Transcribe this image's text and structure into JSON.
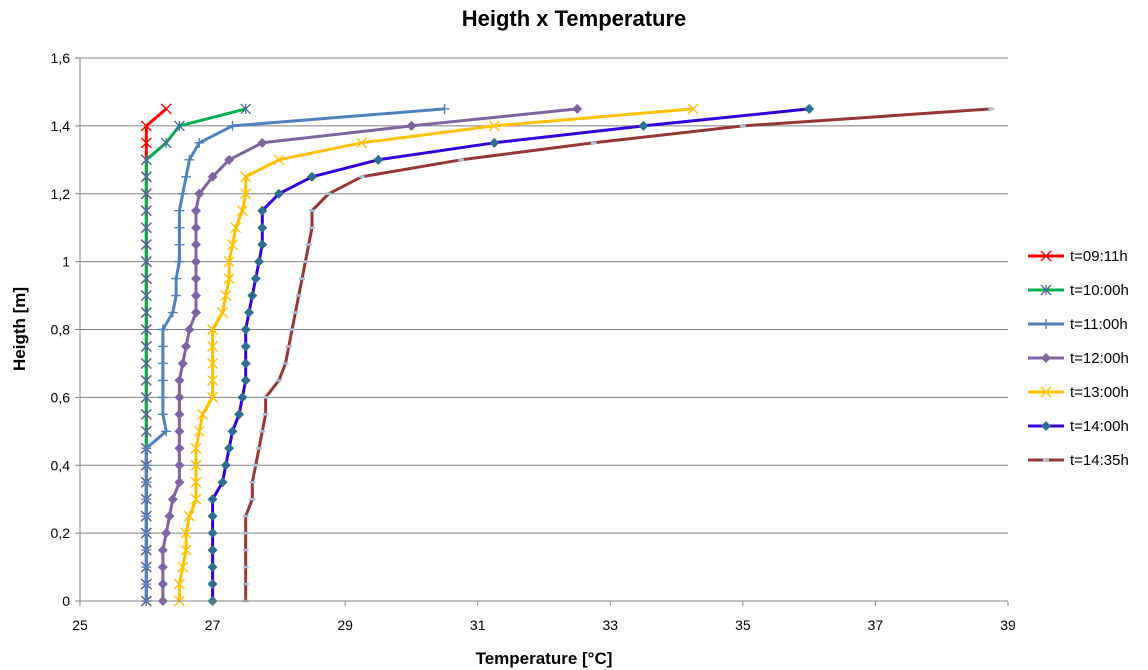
{
  "chart_data": {
    "type": "line",
    "title": "Heigth x Temperature",
    "xlabel": "Temperature [°C]",
    "ylabel": "Heigth [m]",
    "xlim": [
      25,
      39
    ],
    "ylim": [
      0,
      1.6
    ],
    "xticks": [
      25,
      27,
      29,
      31,
      33,
      35,
      37,
      39
    ],
    "xtick_labels": [
      "25",
      "27",
      "29",
      "31",
      "33",
      "35",
      "37",
      "39"
    ],
    "yticks": [
      0,
      0.2,
      0.4,
      0.6,
      0.8,
      1.0,
      1.2,
      1.4,
      1.6
    ],
    "ytick_labels": [
      "0",
      "0,2",
      "0,4",
      "0,6",
      "0,8",
      "1",
      "1,2",
      "1,4",
      "1,6"
    ],
    "grid": "horizontal",
    "legend": "right",
    "series": [
      {
        "name": "t=09:11h",
        "color": "#ff0000",
        "marker": "x",
        "points": [
          [
            26.0,
            0
          ],
          [
            26.0,
            0.05
          ],
          [
            26.0,
            0.1
          ],
          [
            26.0,
            0.15
          ],
          [
            26.0,
            0.2
          ],
          [
            26.0,
            0.25
          ],
          [
            26.0,
            0.3
          ],
          [
            26.0,
            0.35
          ],
          [
            26.0,
            0.4
          ],
          [
            26.0,
            0.45
          ],
          [
            26.0,
            0.5
          ],
          [
            26.0,
            0.55
          ],
          [
            26.0,
            0.6
          ],
          [
            26.0,
            0.65
          ],
          [
            26.0,
            0.7
          ],
          [
            26.0,
            0.75
          ],
          [
            26.0,
            0.8
          ],
          [
            26.0,
            0.85
          ],
          [
            26.0,
            0.9
          ],
          [
            26.0,
            0.95
          ],
          [
            26.0,
            1.0
          ],
          [
            26.0,
            1.05
          ],
          [
            26.0,
            1.1
          ],
          [
            26.0,
            1.15
          ],
          [
            26.0,
            1.2
          ],
          [
            26.0,
            1.25
          ],
          [
            26.0,
            1.3
          ],
          [
            26.0,
            1.35
          ],
          [
            26.0,
            1.4
          ],
          [
            26.3,
            1.45
          ]
        ]
      },
      {
        "name": "t=10:00h",
        "color": "#00b050",
        "marker": "asterisk",
        "points": [
          [
            26.0,
            0
          ],
          [
            26.0,
            0.05
          ],
          [
            26.0,
            0.1
          ],
          [
            26.0,
            0.15
          ],
          [
            26.0,
            0.2
          ],
          [
            26.0,
            0.25
          ],
          [
            26.0,
            0.3
          ],
          [
            26.0,
            0.35
          ],
          [
            26.0,
            0.4
          ],
          [
            26.0,
            0.45
          ],
          [
            26.0,
            0.5
          ],
          [
            26.0,
            0.55
          ],
          [
            26.0,
            0.6
          ],
          [
            26.0,
            0.65
          ],
          [
            26.0,
            0.7
          ],
          [
            26.0,
            0.75
          ],
          [
            26.0,
            0.8
          ],
          [
            26.0,
            0.85
          ],
          [
            26.0,
            0.9
          ],
          [
            26.0,
            0.95
          ],
          [
            26.0,
            1.0
          ],
          [
            26.0,
            1.05
          ],
          [
            26.0,
            1.1
          ],
          [
            26.0,
            1.15
          ],
          [
            26.0,
            1.2
          ],
          [
            26.0,
            1.25
          ],
          [
            26.0,
            1.3
          ],
          [
            26.3,
            1.35
          ],
          [
            26.5,
            1.4
          ],
          [
            27.5,
            1.45
          ]
        ]
      },
      {
        "name": "t=11:00h",
        "color": "#4f81bd",
        "marker": "plus",
        "points": [
          [
            26.0,
            0
          ],
          [
            26.0,
            0.05
          ],
          [
            26.0,
            0.1
          ],
          [
            26.0,
            0.15
          ],
          [
            26.0,
            0.2
          ],
          [
            26.0,
            0.25
          ],
          [
            26.0,
            0.3
          ],
          [
            26.0,
            0.35
          ],
          [
            26.0,
            0.4
          ],
          [
            26.0,
            0.45
          ],
          [
            26.3,
            0.5
          ],
          [
            26.25,
            0.55
          ],
          [
            26.25,
            0.6
          ],
          [
            26.25,
            0.65
          ],
          [
            26.25,
            0.7
          ],
          [
            26.25,
            0.75
          ],
          [
            26.25,
            0.8
          ],
          [
            26.4,
            0.85
          ],
          [
            26.45,
            0.9
          ],
          [
            26.45,
            0.95
          ],
          [
            26.5,
            1.0
          ],
          [
            26.5,
            1.05
          ],
          [
            26.5,
            1.1
          ],
          [
            26.5,
            1.15
          ],
          [
            26.55,
            1.2
          ],
          [
            26.6,
            1.25
          ],
          [
            26.65,
            1.3
          ],
          [
            26.8,
            1.35
          ],
          [
            27.3,
            1.4
          ],
          [
            30.5,
            1.45
          ]
        ]
      },
      {
        "name": "t=12:00h",
        "color": "#8064a2",
        "marker": "diamond",
        "points": [
          [
            26.25,
            0
          ],
          [
            26.25,
            0.05
          ],
          [
            26.25,
            0.1
          ],
          [
            26.25,
            0.15
          ],
          [
            26.3,
            0.2
          ],
          [
            26.35,
            0.25
          ],
          [
            26.4,
            0.3
          ],
          [
            26.5,
            0.35
          ],
          [
            26.5,
            0.4
          ],
          [
            26.5,
            0.45
          ],
          [
            26.5,
            0.5
          ],
          [
            26.5,
            0.55
          ],
          [
            26.5,
            0.6
          ],
          [
            26.5,
            0.65
          ],
          [
            26.55,
            0.7
          ],
          [
            26.6,
            0.75
          ],
          [
            26.65,
            0.8
          ],
          [
            26.75,
            0.85
          ],
          [
            26.75,
            0.9
          ],
          [
            26.75,
            0.95
          ],
          [
            26.75,
            1.0
          ],
          [
            26.75,
            1.05
          ],
          [
            26.75,
            1.1
          ],
          [
            26.75,
            1.15
          ],
          [
            26.8,
            1.2
          ],
          [
            27.0,
            1.25
          ],
          [
            27.25,
            1.3
          ],
          [
            27.75,
            1.35
          ],
          [
            30.0,
            1.4
          ],
          [
            32.5,
            1.45
          ]
        ]
      },
      {
        "name": "t=13:00h",
        "color": "#ffc000",
        "marker": "x",
        "points": [
          [
            26.5,
            0
          ],
          [
            26.5,
            0.05
          ],
          [
            26.55,
            0.1
          ],
          [
            26.6,
            0.15
          ],
          [
            26.6,
            0.2
          ],
          [
            26.65,
            0.25
          ],
          [
            26.75,
            0.3
          ],
          [
            26.75,
            0.35
          ],
          [
            26.75,
            0.4
          ],
          [
            26.75,
            0.45
          ],
          [
            26.8,
            0.5
          ],
          [
            26.85,
            0.55
          ],
          [
            27.0,
            0.6
          ],
          [
            27.0,
            0.65
          ],
          [
            27.0,
            0.7
          ],
          [
            27.0,
            0.75
          ],
          [
            27.0,
            0.8
          ],
          [
            27.15,
            0.85
          ],
          [
            27.2,
            0.9
          ],
          [
            27.25,
            0.95
          ],
          [
            27.25,
            1.0
          ],
          [
            27.3,
            1.05
          ],
          [
            27.35,
            1.1
          ],
          [
            27.45,
            1.15
          ],
          [
            27.5,
            1.2
          ],
          [
            27.5,
            1.25
          ],
          [
            28.0,
            1.3
          ],
          [
            29.25,
            1.35
          ],
          [
            31.25,
            1.4
          ],
          [
            34.25,
            1.45
          ]
        ]
      },
      {
        "name": "t=14:00h",
        "color": "#3300dd",
        "marker": "diamond",
        "points": [
          [
            27.0,
            0
          ],
          [
            27.0,
            0.05
          ],
          [
            27.0,
            0.1
          ],
          [
            27.0,
            0.15
          ],
          [
            27.0,
            0.2
          ],
          [
            27.0,
            0.25
          ],
          [
            27.0,
            0.3
          ],
          [
            27.15,
            0.35
          ],
          [
            27.2,
            0.4
          ],
          [
            27.25,
            0.45
          ],
          [
            27.3,
            0.5
          ],
          [
            27.4,
            0.55
          ],
          [
            27.45,
            0.6
          ],
          [
            27.5,
            0.65
          ],
          [
            27.5,
            0.7
          ],
          [
            27.5,
            0.75
          ],
          [
            27.5,
            0.8
          ],
          [
            27.55,
            0.85
          ],
          [
            27.6,
            0.9
          ],
          [
            27.65,
            0.95
          ],
          [
            27.7,
            1.0
          ],
          [
            27.75,
            1.05
          ],
          [
            27.75,
            1.1
          ],
          [
            27.75,
            1.15
          ],
          [
            28.0,
            1.2
          ],
          [
            28.5,
            1.25
          ],
          [
            29.5,
            1.3
          ],
          [
            31.25,
            1.35
          ],
          [
            33.5,
            1.4
          ],
          [
            36.0,
            1.45
          ]
        ]
      },
      {
        "name": "t=14:35h",
        "color": "#953735",
        "marker": "dash",
        "points": [
          [
            27.5,
            0
          ],
          [
            27.5,
            0.05
          ],
          [
            27.5,
            0.1
          ],
          [
            27.5,
            0.15
          ],
          [
            27.5,
            0.2
          ],
          [
            27.5,
            0.25
          ],
          [
            27.6,
            0.3
          ],
          [
            27.6,
            0.35
          ],
          [
            27.65,
            0.4
          ],
          [
            27.7,
            0.45
          ],
          [
            27.75,
            0.5
          ],
          [
            27.8,
            0.55
          ],
          [
            27.8,
            0.6
          ],
          [
            28.0,
            0.65
          ],
          [
            28.1,
            0.7
          ],
          [
            28.15,
            0.75
          ],
          [
            28.2,
            0.8
          ],
          [
            28.25,
            0.85
          ],
          [
            28.3,
            0.9
          ],
          [
            28.35,
            0.95
          ],
          [
            28.4,
            1.0
          ],
          [
            28.45,
            1.05
          ],
          [
            28.5,
            1.1
          ],
          [
            28.5,
            1.15
          ],
          [
            28.75,
            1.2
          ],
          [
            29.25,
            1.25
          ],
          [
            30.75,
            1.3
          ],
          [
            32.75,
            1.35
          ],
          [
            35.0,
            1.4
          ],
          [
            38.75,
            1.45
          ]
        ]
      }
    ]
  }
}
